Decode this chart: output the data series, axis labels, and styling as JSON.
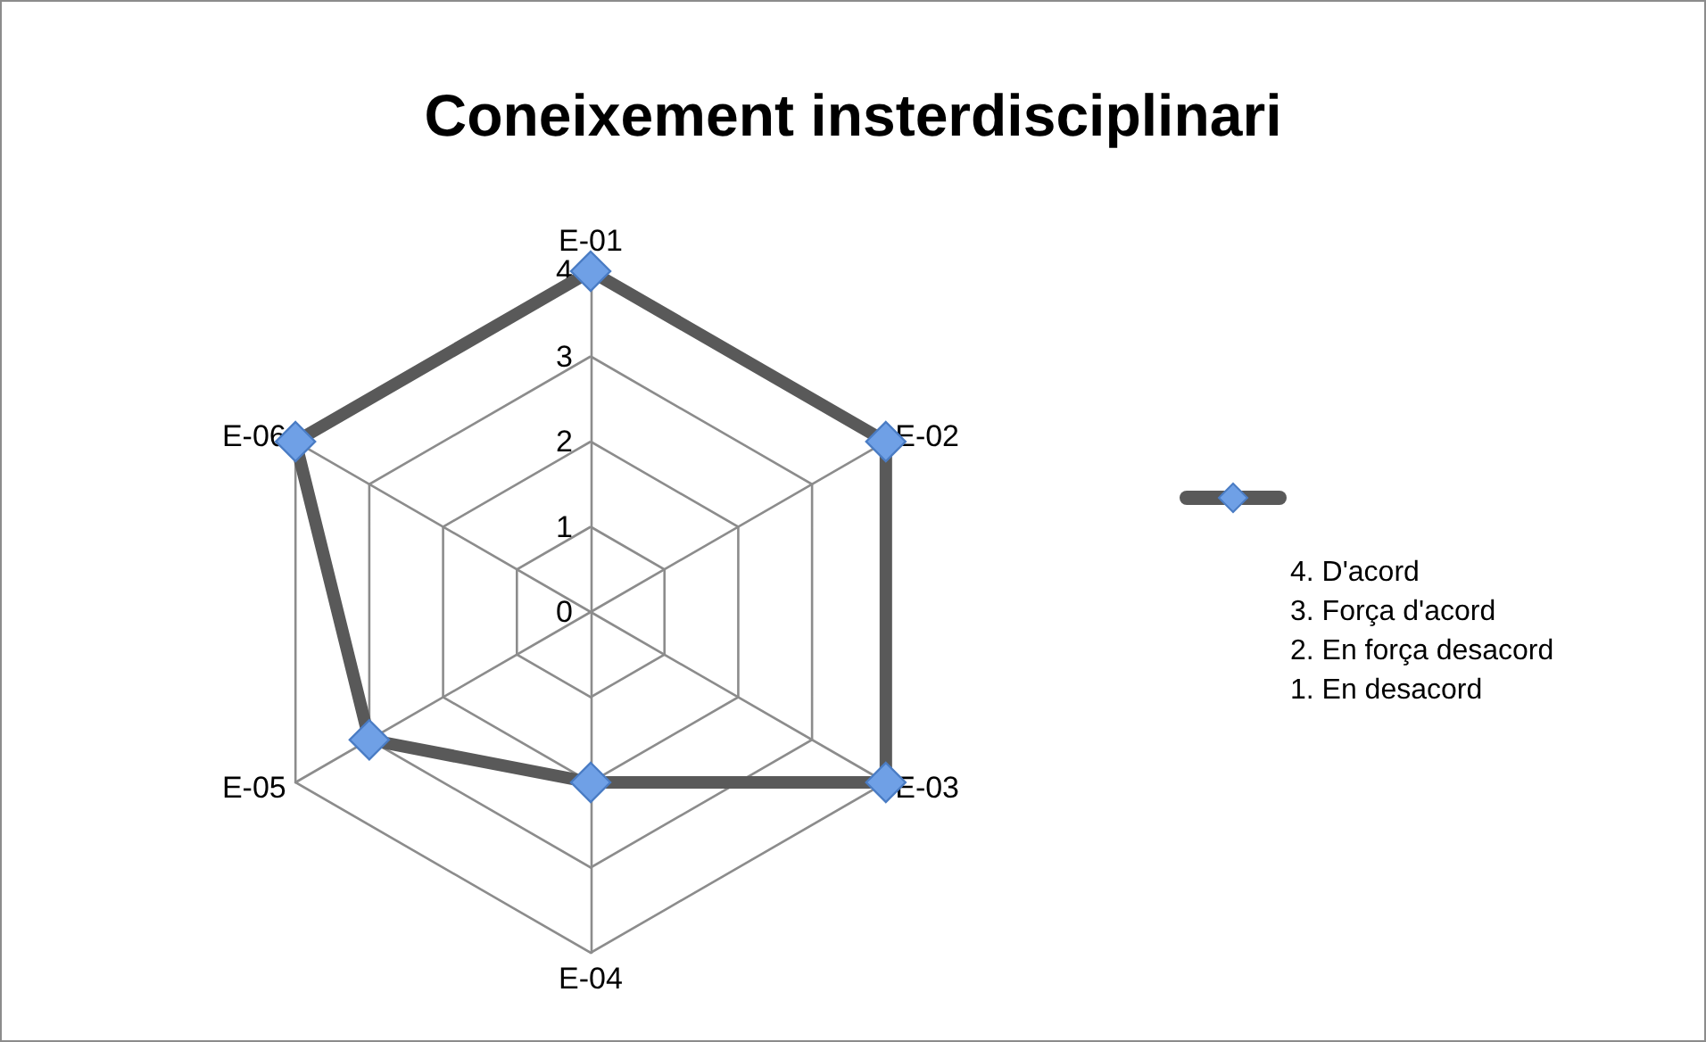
{
  "chart_data": {
    "type": "radar",
    "title": "Coneixement insterdisciplinari",
    "categories": [
      "E-01",
      "E-02",
      "E-03",
      "E-04",
      "E-05",
      "E-06"
    ],
    "series": [
      {
        "color": "#595959",
        "colors": [
          "#6fa0e6",
          "#6fa0e6",
          "#6fa0e6",
          "#6fa0e6",
          "#6fa0e6",
          "#6fa0e6"
        ],
        "values": [
          4,
          4,
          4,
          2,
          3,
          4
        ]
      }
    ],
    "ylim": [
      0,
      4
    ],
    "yticks": [
      0,
      1,
      2,
      3,
      4
    ],
    "grid": true,
    "marker": "diamond",
    "line_style": "solid",
    "annotations": [
      "4. D'acord",
      "3. Força d'acord",
      "2. En força desacord",
      "1. En desacord"
    ]
  }
}
